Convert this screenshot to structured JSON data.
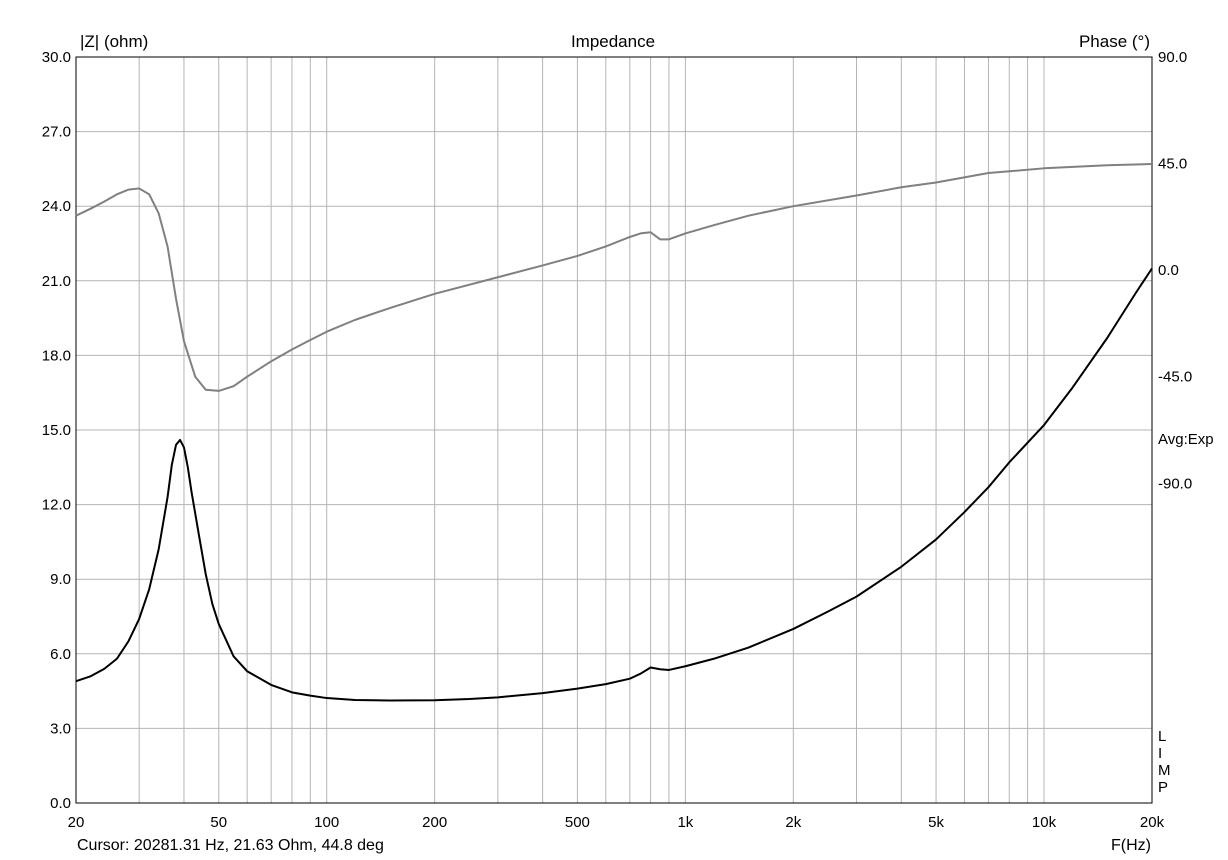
{
  "title": "Impedance",
  "left_axis_label": "|Z| (ohm)",
  "right_axis_label": "Phase (°)",
  "x_axis_label": "F(Hz)",
  "cursor_text": "Cursor: 20281.31 Hz, 21.63 Ohm, 44.8 deg",
  "avg_label": "Avg:Exp",
  "lim_label": [
    "L",
    "I",
    "M",
    "P"
  ],
  "colors": {
    "impedance": "#000000",
    "phase": "#808080",
    "grid": "#b4b4b4",
    "background": "#ffffff"
  },
  "chart_data": {
    "type": "line",
    "title": "Impedance",
    "xlabel": "F(Hz)",
    "ylabel": "|Z| (ohm)",
    "y2label": "Phase (°)",
    "xscale": "log",
    "xlim": [
      20,
      20000
    ],
    "ylim": [
      0,
      30
    ],
    "y2lim": [
      -225,
      90
    ],
    "grid": true,
    "x_ticks": [
      "20",
      "50",
      "100",
      "200",
      "500",
      "1k",
      "2k",
      "5k",
      "10k",
      "20k"
    ],
    "x_tick_values": [
      20,
      50,
      100,
      200,
      500,
      1000,
      2000,
      5000,
      10000,
      20000
    ],
    "y_ticks": [
      "0.0",
      "3.0",
      "6.0",
      "9.0",
      "12.0",
      "15.0",
      "18.0",
      "21.0",
      "24.0",
      "27.0",
      "30.0"
    ],
    "y_tick_values": [
      0,
      3,
      6,
      9,
      12,
      15,
      18,
      21,
      24,
      27,
      30
    ],
    "y2_ticks": [
      "90.0",
      "45.0",
      "0.0",
      "-45.0",
      "-90.0"
    ],
    "y2_tick_values": [
      90,
      45,
      0,
      -45,
      -90
    ],
    "series": [
      {
        "axis": "left",
        "points": [
          [
            20,
            4.9
          ],
          [
            22,
            5.1
          ],
          [
            24,
            5.4
          ],
          [
            26,
            5.8
          ],
          [
            28,
            6.5
          ],
          [
            30,
            7.4
          ],
          [
            32,
            8.6
          ],
          [
            34,
            10.2
          ],
          [
            36,
            12.3
          ],
          [
            37,
            13.6
          ],
          [
            38,
            14.4
          ],
          [
            39,
            14.6
          ],
          [
            40,
            14.3
          ],
          [
            41,
            13.5
          ],
          [
            42,
            12.5
          ],
          [
            44,
            10.8
          ],
          [
            46,
            9.2
          ],
          [
            48,
            8.0
          ],
          [
            50,
            7.2
          ],
          [
            55,
            5.9
          ],
          [
            60,
            5.3
          ],
          [
            70,
            4.75
          ],
          [
            80,
            4.45
          ],
          [
            90,
            4.32
          ],
          [
            100,
            4.22
          ],
          [
            120,
            4.14
          ],
          [
            150,
            4.12
          ],
          [
            200,
            4.13
          ],
          [
            250,
            4.18
          ],
          [
            300,
            4.25
          ],
          [
            400,
            4.42
          ],
          [
            500,
            4.6
          ],
          [
            600,
            4.78
          ],
          [
            700,
            5.0
          ],
          [
            750,
            5.2
          ],
          [
            800,
            5.45
          ],
          [
            850,
            5.38
          ],
          [
            900,
            5.35
          ],
          [
            1000,
            5.5
          ],
          [
            1200,
            5.8
          ],
          [
            1500,
            6.25
          ],
          [
            2000,
            7.0
          ],
          [
            2500,
            7.7
          ],
          [
            3000,
            8.3
          ],
          [
            4000,
            9.5
          ],
          [
            5000,
            10.6
          ],
          [
            6000,
            11.7
          ],
          [
            7000,
            12.7
          ],
          [
            8000,
            13.7
          ],
          [
            10000,
            15.2
          ],
          [
            12000,
            16.7
          ],
          [
            15000,
            18.7
          ],
          [
            18000,
            20.5
          ],
          [
            20000,
            21.5
          ]
        ]
      },
      {
        "axis": "right",
        "points": [
          [
            20,
            23
          ],
          [
            22,
            26
          ],
          [
            24,
            29
          ],
          [
            26,
            32
          ],
          [
            28,
            34
          ],
          [
            30,
            34.5
          ],
          [
            32,
            32
          ],
          [
            34,
            24
          ],
          [
            36,
            10
          ],
          [
            38,
            -12
          ],
          [
            40,
            -30
          ],
          [
            43,
            -45
          ],
          [
            46,
            -50.5
          ],
          [
            50,
            -51
          ],
          [
            55,
            -49
          ],
          [
            60,
            -45
          ],
          [
            70,
            -38.5
          ],
          [
            80,
            -33.5
          ],
          [
            90,
            -29.5
          ],
          [
            100,
            -26
          ],
          [
            120,
            -21
          ],
          [
            150,
            -16
          ],
          [
            200,
            -10
          ],
          [
            300,
            -3
          ],
          [
            400,
            2
          ],
          [
            500,
            6
          ],
          [
            600,
            10
          ],
          [
            700,
            14
          ],
          [
            750,
            15.5
          ],
          [
            800,
            16
          ],
          [
            850,
            13
          ],
          [
            900,
            13
          ],
          [
            1000,
            15.5
          ],
          [
            1200,
            19
          ],
          [
            1500,
            23
          ],
          [
            2000,
            27
          ],
          [
            3000,
            31.5
          ],
          [
            4000,
            35
          ],
          [
            5000,
            37
          ],
          [
            7000,
            41
          ],
          [
            10000,
            43
          ],
          [
            15000,
            44.3
          ],
          [
            20000,
            44.8
          ]
        ]
      }
    ]
  }
}
